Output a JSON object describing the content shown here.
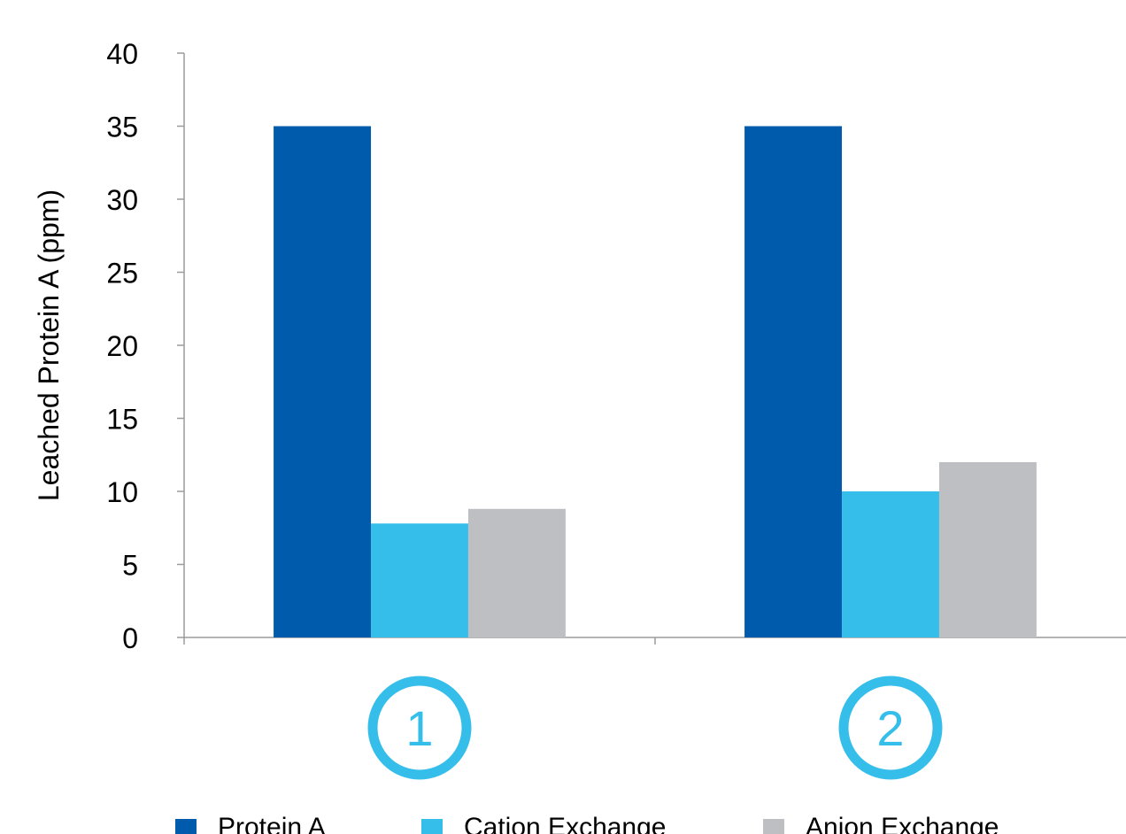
{
  "chart_data": {
    "type": "bar",
    "title": "",
    "xlabel": "",
    "ylabel": "Leached Protein A (ppm)",
    "ylim": [
      0,
      40
    ],
    "yticks": [
      0,
      5,
      10,
      15,
      20,
      25,
      30,
      35,
      40
    ],
    "categories": [
      "1",
      "2"
    ],
    "series": [
      {
        "name": "Protein A",
        "color": "#005BAC",
        "values": [
          35,
          35
        ]
      },
      {
        "name": "Cation Exchange",
        "color": "#36BEEB",
        "values": [
          7.8,
          10
        ]
      },
      {
        "name": "Anion Exchange",
        "color": "#BEBFC2",
        "values": [
          8.8,
          12
        ]
      }
    ],
    "category_marker_color": "#36BEEB",
    "axis_color": "#9B9B9B",
    "grid": false,
    "legend_position": "bottom"
  }
}
